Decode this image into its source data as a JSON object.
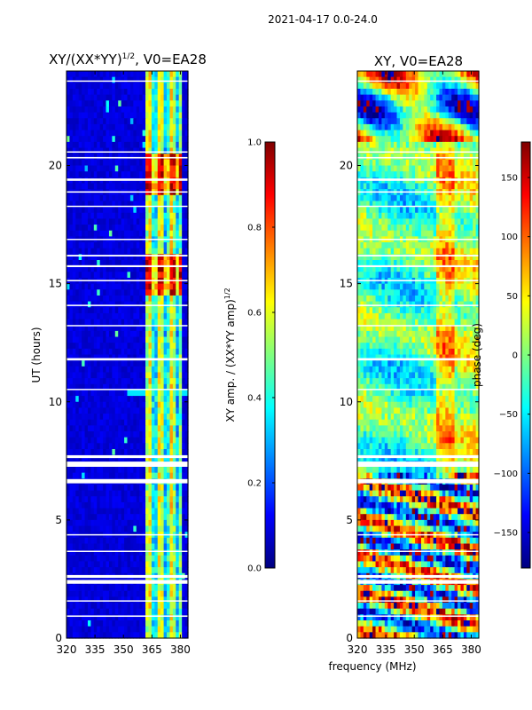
{
  "page": {
    "suptitle": "2021-04-17 0.0-24.0"
  },
  "colors": {
    "jet": [
      "#00007f",
      "#0000ff",
      "#007fff",
      "#00ffff",
      "#7fff7f",
      "#ffff00",
      "#ff7f00",
      "#ff0000",
      "#7f0000"
    ],
    "background": "#ffffff",
    "gap": "#ffffff"
  },
  "chart_data": [
    {
      "type": "heatmap",
      "id": "amp",
      "title_prefix": "XY/(XX*YY)",
      "title_sup": "1/2",
      "title_suffix": ", V0=EA28",
      "xlabel": "frequency (MHz)",
      "ylabel": "UT (hours)",
      "xlim": [
        320,
        384
      ],
      "ylim": [
        0,
        24
      ],
      "xticks": [
        320,
        335,
        350,
        365,
        380
      ],
      "yticks": [
        0,
        5,
        10,
        15,
        20
      ],
      "z_range": [
        0,
        1
      ],
      "description": "Normalized XY amplitude; mostly near 0 below ~362 MHz, higher in 362-380 MHz band with strong values around UT 15 and 20",
      "colorbar": {
        "label_prefix": "XY amp. / (XX*YY amp)",
        "label_sup": "1/2",
        "ticks": [
          "0.0",
          "0.2",
          "0.4",
          "0.6",
          "0.8",
          "1.0"
        ],
        "range": [
          0,
          1
        ]
      }
    },
    {
      "type": "heatmap",
      "id": "phase",
      "title": "XY, V0=EA28",
      "xlabel": "frequency (MHz)",
      "ylabel": "",
      "xlim": [
        320,
        384
      ],
      "ylim": [
        0,
        24
      ],
      "xticks": [
        320,
        335,
        350,
        365,
        380
      ],
      "yticks": [
        0,
        5,
        10,
        15,
        20
      ],
      "z_range": [
        -180,
        180
      ],
      "description": "XY phase in degrees, wrapping across the full range with frequency-dependent structure",
      "colorbar": {
        "label": "phase (deg)",
        "ticks": [
          "−150",
          "−100",
          "−50",
          "0",
          "50",
          "100",
          "150"
        ],
        "tick_values": [
          -150,
          -100,
          -50,
          0,
          50,
          100,
          150
        ],
        "range": [
          -180,
          180
        ]
      }
    }
  ],
  "gaps_ut": [
    [
      0.9,
      0.06
    ],
    [
      1.55,
      0.05
    ],
    [
      2.3,
      0.16
    ],
    [
      2.55,
      0.12
    ],
    [
      3.65,
      0.05
    ],
    [
      4.35,
      0.05
    ],
    [
      6.55,
      0.18
    ],
    [
      7.25,
      0.22
    ],
    [
      7.62,
      0.12
    ],
    [
      10.5,
      0.05
    ],
    [
      11.75,
      0.1
    ],
    [
      13.2,
      0.05
    ],
    [
      14.05,
      0.06
    ],
    [
      15.1,
      0.06
    ],
    [
      15.7,
      0.08
    ],
    [
      16.15,
      0.07
    ],
    [
      16.85,
      0.05
    ],
    [
      18.25,
      0.05
    ],
    [
      18.85,
      0.06
    ],
    [
      19.35,
      0.1
    ],
    [
      20.3,
      0.06
    ],
    [
      20.55,
      0.05
    ],
    [
      23.55,
      0.05
    ]
  ]
}
